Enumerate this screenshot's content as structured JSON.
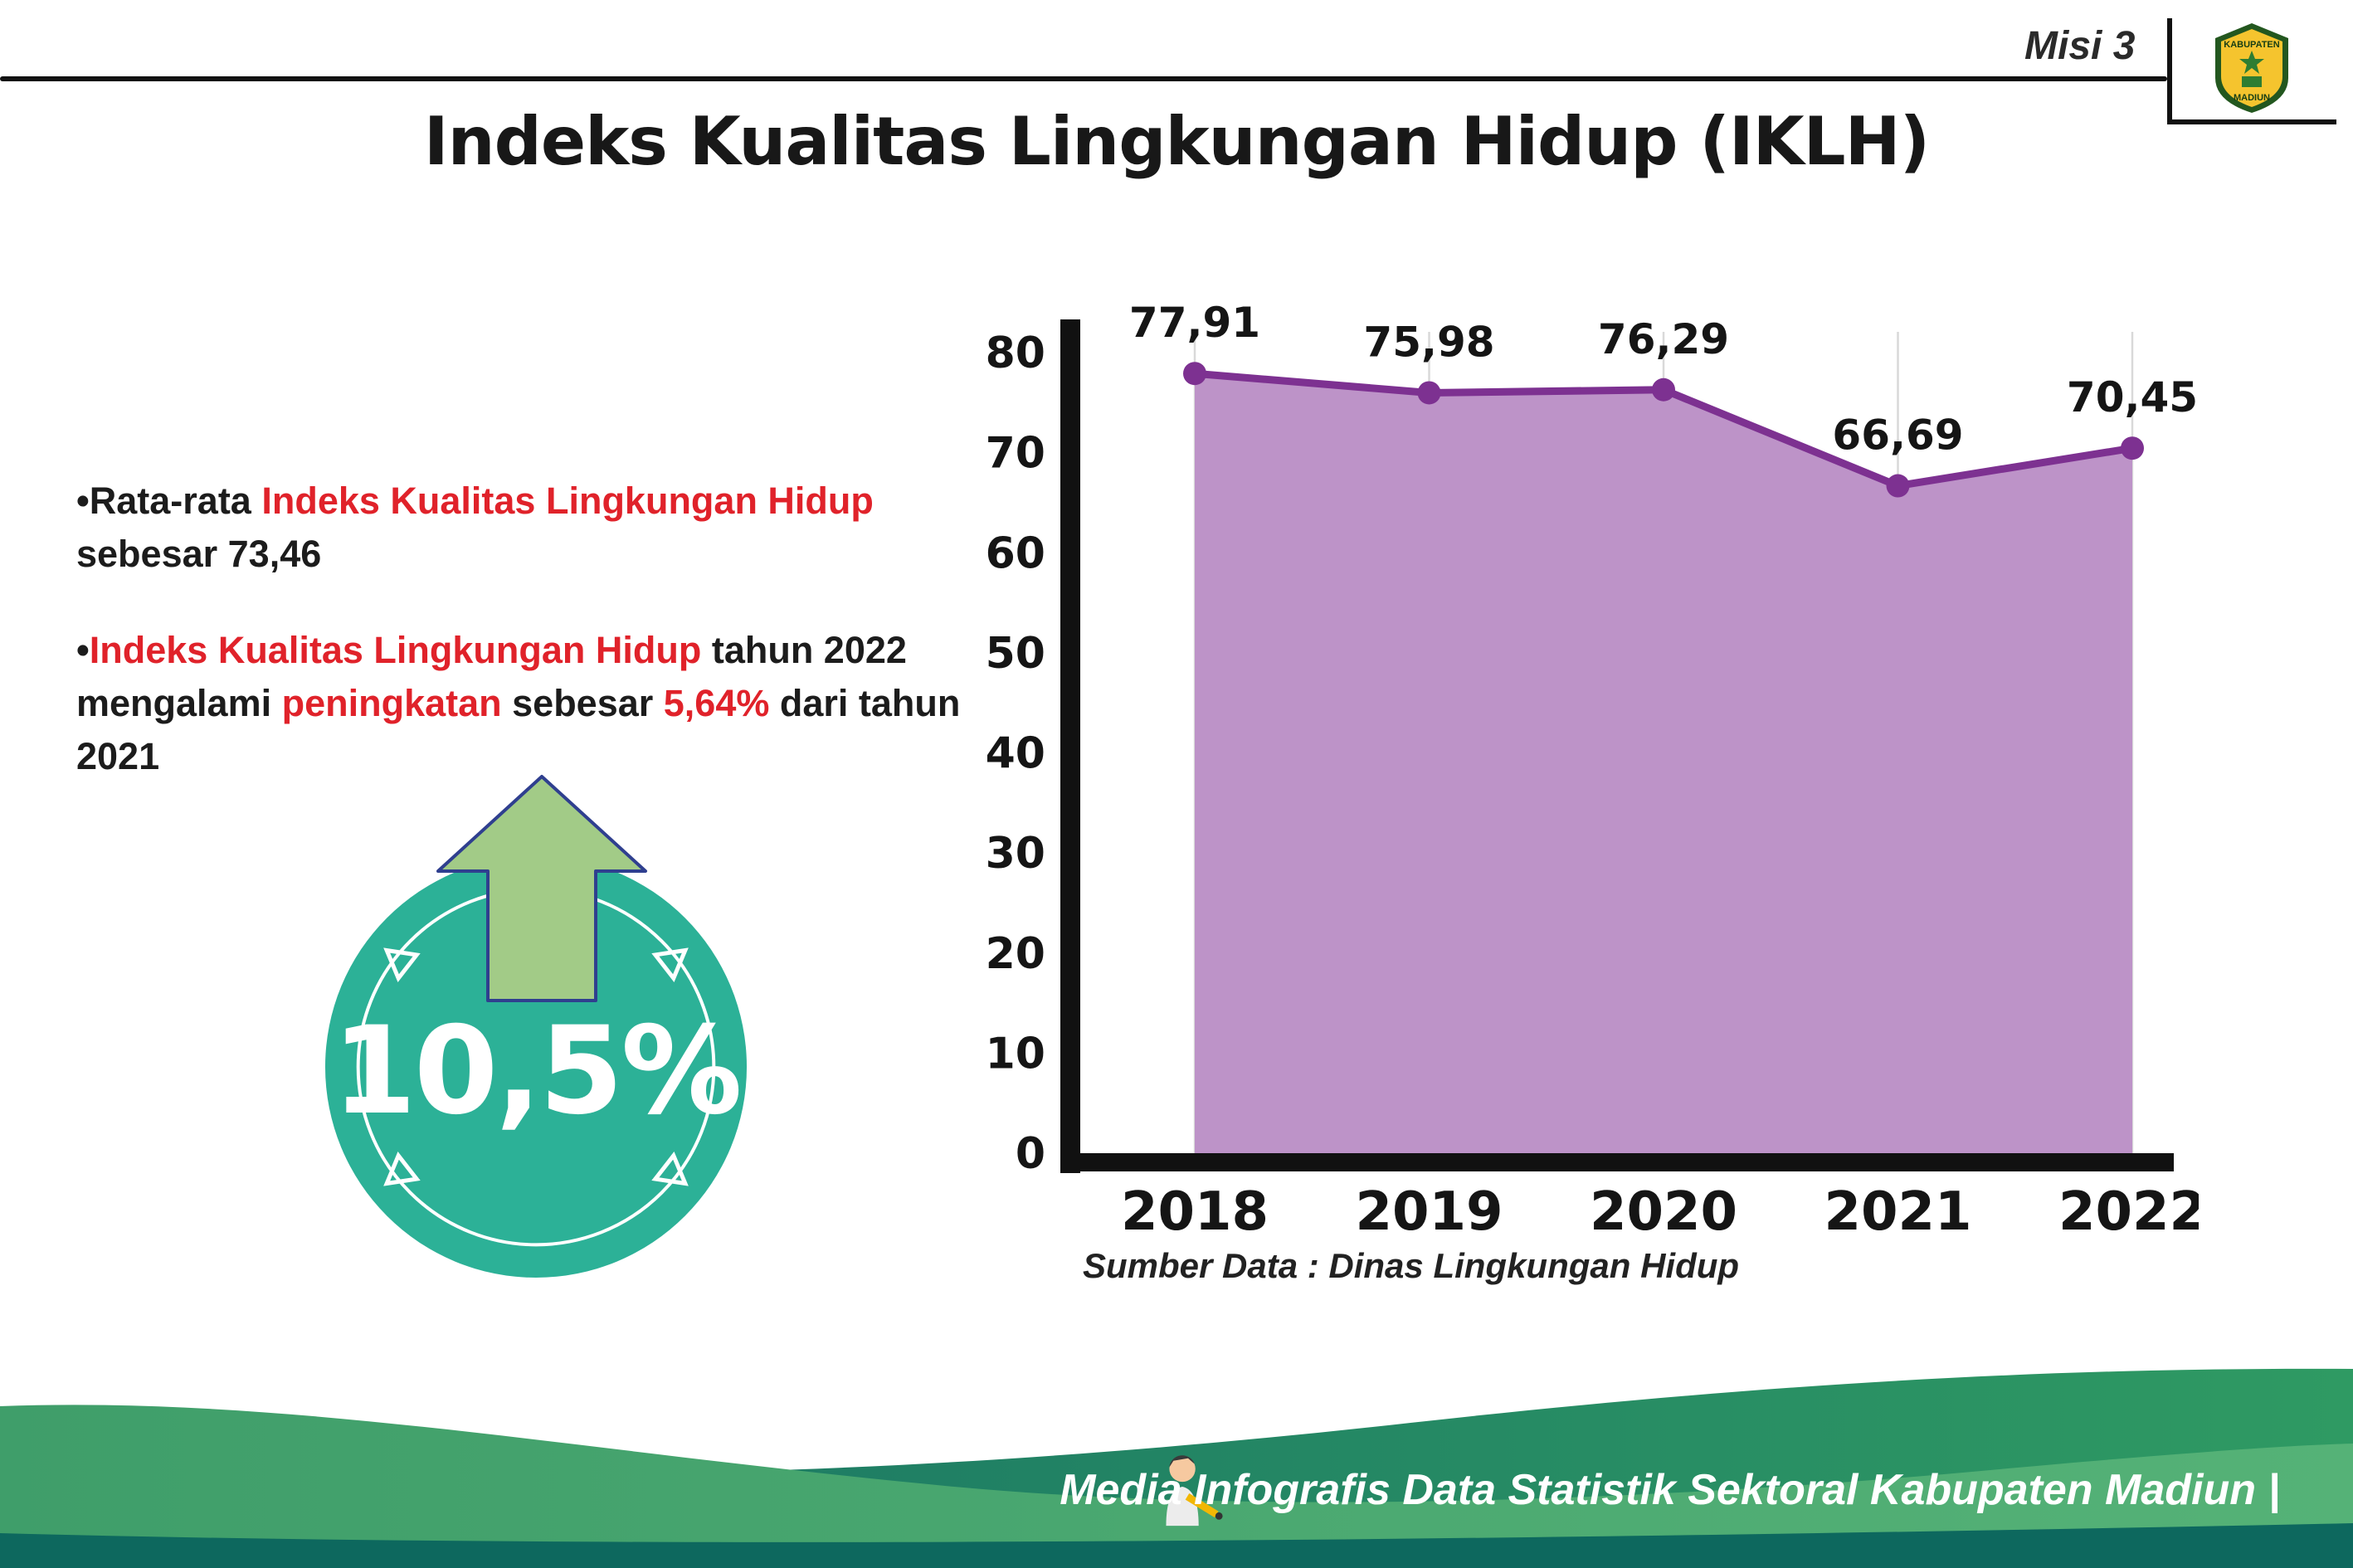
{
  "header": {
    "misi_label": "Misi 3"
  },
  "logo": {
    "top_text": "KABUPATEN",
    "bottom_text": "MADIUN"
  },
  "title": "Indeks Kualitas Lingkungan Hidup (IKLH)",
  "bullets": {
    "marker": "•",
    "b1": {
      "seg1": "Rata-rata ",
      "seg2": "Indeks Kualitas Lingkungan Hidup",
      "seg3": " sebesar 73,46"
    },
    "b2": {
      "seg1": "Indeks Kualitas Lingkungan Hidup",
      "seg2": " tahun 2022 mengalami ",
      "seg3": "peningkatan",
      "seg4": " sebesar ",
      "seg5": "5,64%",
      "seg6": " dari tahun 2021"
    }
  },
  "badge": {
    "value": "10,5%"
  },
  "chart_data": {
    "type": "area",
    "title": "",
    "categories": [
      "2018",
      "2019",
      "2020",
      "2021",
      "2022"
    ],
    "values": [
      77.91,
      75.98,
      76.29,
      66.69,
      70.45
    ],
    "value_labels": [
      "77,91",
      "75,98",
      "76,29",
      "66,69",
      "70,45"
    ],
    "ylim": [
      0,
      80
    ],
    "yticks": [
      0,
      10,
      20,
      30,
      40,
      50,
      60,
      70,
      80
    ],
    "grid": "vertical-light",
    "legend": "none",
    "line_color": "#7d3191",
    "fill_color": "#bd93c8",
    "source": "Sumber Data : Dinas Lingkungan Hidup"
  },
  "footer": {
    "caption": "Media Infografis Data Statistik Sektoral Kabupaten Madiun |"
  },
  "colors": {
    "red": "#e0222a",
    "teal": "#2cb197",
    "arrow_green": "#a2cb87",
    "arrow_outline": "#2f3f8f",
    "purple_line": "#7d3191",
    "purple_fill": "#bd93c8",
    "footer_teal_dark": "#166f65",
    "footer_teal_light": "#2f9a63",
    "footer_green_dark": "#3f9e6a",
    "footer_green_light": "#55b277",
    "footer_strip": "#0d685e",
    "axis": "#111111"
  }
}
